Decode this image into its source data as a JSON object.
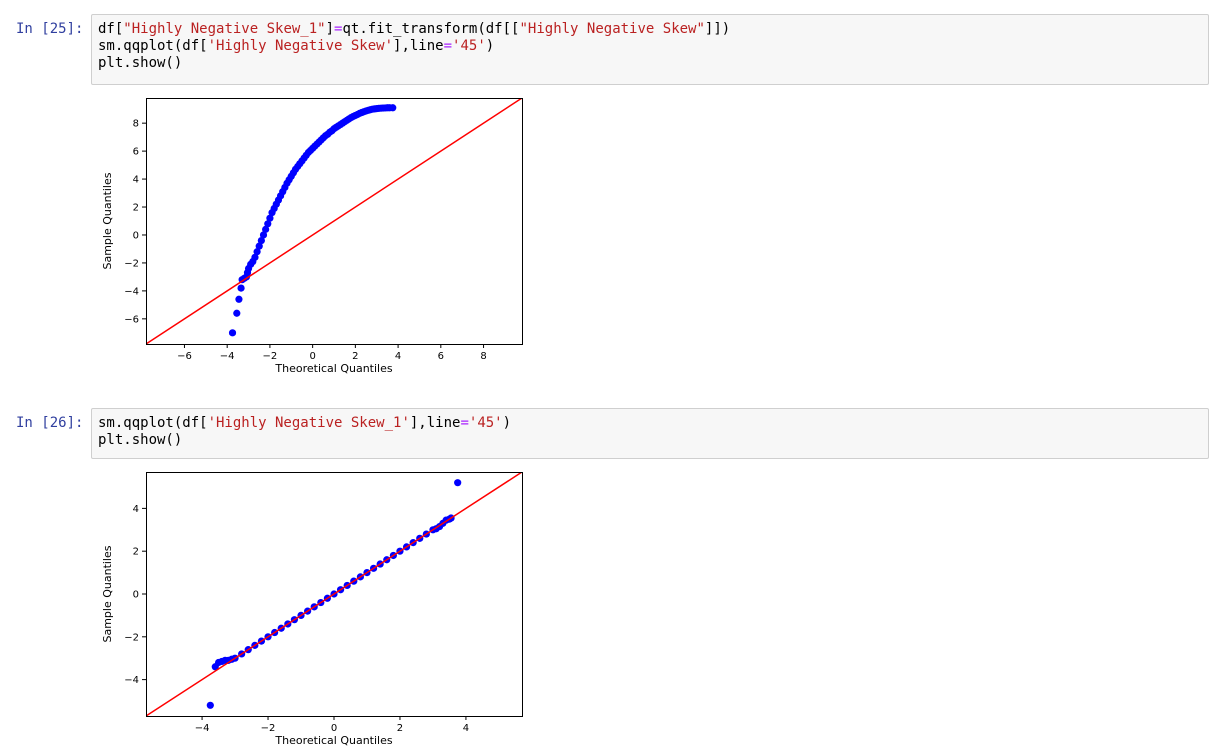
{
  "cells": [
    {
      "prompt": "In [25]:",
      "lines": [
        [
          {
            "t": "df[",
            "c": ""
          },
          {
            "t": "\"Highly Negative Skew_1\"",
            "c": "str"
          },
          {
            "t": "]",
            "c": ""
          },
          {
            "t": "=",
            "c": "op"
          },
          {
            "t": "qt.fit_transform(df[[",
            "c": ""
          },
          {
            "t": "\"Highly Negative Skew\"",
            "c": "str"
          },
          {
            "t": "]])",
            "c": ""
          }
        ],
        [
          {
            "t": "sm.qqplot(df[",
            "c": ""
          },
          {
            "t": "'Highly Negative Skew'",
            "c": "str"
          },
          {
            "t": "],line",
            "c": ""
          },
          {
            "t": "=",
            "c": "op"
          },
          {
            "t": "'45'",
            "c": "str"
          },
          {
            "t": ")",
            "c": ""
          }
        ],
        [
          {
            "t": "plt.show()",
            "c": ""
          }
        ]
      ]
    },
    {
      "prompt": "In [26]:",
      "lines": [
        [
          {
            "t": "sm.qqplot(df[",
            "c": ""
          },
          {
            "t": "'Highly Negative Skew_1'",
            "c": "str"
          },
          {
            "t": "],line",
            "c": ""
          },
          {
            "t": "=",
            "c": "op"
          },
          {
            "t": "'45'",
            "c": "str"
          },
          {
            "t": ")",
            "c": ""
          }
        ],
        [
          {
            "t": "plt.show()",
            "c": ""
          }
        ]
      ]
    }
  ],
  "chart_data": [
    {
      "type": "scatter",
      "title": "",
      "xlabel": "Theoretical Quantiles",
      "ylabel": "Sample Quantiles",
      "xlim": [
        -7.8,
        9.8
      ],
      "ylim": [
        -7.8,
        9.8
      ],
      "xticks": [
        -6,
        -4,
        -2,
        0,
        2,
        4,
        6,
        8
      ],
      "yticks": [
        -6,
        -4,
        -2,
        0,
        2,
        4,
        6,
        8
      ],
      "reference_line": "45",
      "point_color": "#0000ff",
      "line_color": "#ff0000",
      "points": [
        [
          -3.75,
          -7.0
        ],
        [
          -3.55,
          -5.6
        ],
        [
          -3.45,
          -4.6
        ],
        [
          -3.35,
          -3.8
        ],
        [
          -3.3,
          -3.2
        ],
        [
          -3.2,
          -3.1
        ],
        [
          -3.1,
          -3.0
        ],
        [
          -3.05,
          -2.7
        ],
        [
          -3.0,
          -2.4
        ],
        [
          -2.9,
          -2.1
        ],
        [
          -2.8,
          -1.9
        ],
        [
          -2.7,
          -1.6
        ],
        [
          -2.6,
          -1.2
        ],
        [
          -2.5,
          -0.8
        ],
        [
          -2.4,
          -0.4
        ],
        [
          -2.3,
          0.0
        ],
        [
          -2.2,
          0.4
        ],
        [
          -2.1,
          0.8
        ],
        [
          -2.0,
          1.2
        ],
        [
          -1.9,
          1.6
        ],
        [
          -1.8,
          1.9
        ],
        [
          -1.7,
          2.2
        ],
        [
          -1.6,
          2.5
        ],
        [
          -1.5,
          2.8
        ],
        [
          -1.4,
          3.1
        ],
        [
          -1.3,
          3.4
        ],
        [
          -1.2,
          3.7
        ],
        [
          -1.1,
          3.95
        ],
        [
          -1.0,
          4.2
        ],
        [
          -0.9,
          4.45
        ],
        [
          -0.8,
          4.7
        ],
        [
          -0.7,
          4.9
        ],
        [
          -0.6,
          5.1
        ],
        [
          -0.5,
          5.3
        ],
        [
          -0.4,
          5.5
        ],
        [
          -0.3,
          5.7
        ],
        [
          -0.2,
          5.9
        ],
        [
          -0.1,
          6.05
        ],
        [
          0.0,
          6.2
        ],
        [
          0.1,
          6.35
        ],
        [
          0.2,
          6.5
        ],
        [
          0.3,
          6.65
        ],
        [
          0.4,
          6.8
        ],
        [
          0.5,
          6.95
        ],
        [
          0.6,
          7.1
        ],
        [
          0.7,
          7.2
        ],
        [
          0.8,
          7.35
        ],
        [
          0.9,
          7.45
        ],
        [
          1.0,
          7.6
        ],
        [
          1.1,
          7.7
        ],
        [
          1.2,
          7.8
        ],
        [
          1.3,
          7.9
        ],
        [
          1.4,
          8.0
        ],
        [
          1.5,
          8.1
        ],
        [
          1.6,
          8.2
        ],
        [
          1.7,
          8.3
        ],
        [
          1.8,
          8.4
        ],
        [
          1.9,
          8.48
        ],
        [
          2.0,
          8.55
        ],
        [
          2.1,
          8.62
        ],
        [
          2.2,
          8.7
        ],
        [
          2.3,
          8.76
        ],
        [
          2.4,
          8.82
        ],
        [
          2.5,
          8.87
        ],
        [
          2.6,
          8.92
        ],
        [
          2.7,
          8.96
        ],
        [
          2.8,
          9.0
        ],
        [
          2.9,
          9.02
        ],
        [
          3.0,
          9.04
        ],
        [
          3.1,
          9.06
        ],
        [
          3.2,
          9.07
        ],
        [
          3.3,
          9.08
        ],
        [
          3.4,
          9.09
        ],
        [
          3.5,
          9.1
        ],
        [
          3.6,
          9.1
        ],
        [
          3.75,
          9.1
        ]
      ]
    },
    {
      "type": "scatter",
      "title": "",
      "xlabel": "Theoretical Quantiles",
      "ylabel": "Sample Quantiles",
      "xlim": [
        -5.7,
        5.7
      ],
      "ylim": [
        -5.7,
        5.7
      ],
      "xticks": [
        -4,
        -2,
        0,
        2,
        4
      ],
      "yticks": [
        -4,
        -2,
        0,
        2,
        4
      ],
      "reference_line": "45",
      "point_color": "#0000ff",
      "line_color": "#ff0000",
      "points": [
        [
          -3.75,
          -5.2
        ],
        [
          -3.6,
          -3.4
        ],
        [
          -3.5,
          -3.2
        ],
        [
          -3.4,
          -3.15
        ],
        [
          -3.3,
          -3.1
        ],
        [
          -3.2,
          -3.1
        ],
        [
          -3.1,
          -3.05
        ],
        [
          -3.0,
          -3.0
        ],
        [
          -2.8,
          -2.8
        ],
        [
          -2.6,
          -2.6
        ],
        [
          -2.4,
          -2.4
        ],
        [
          -2.2,
          -2.2
        ],
        [
          -2.0,
          -2.0
        ],
        [
          -1.8,
          -1.8
        ],
        [
          -1.6,
          -1.6
        ],
        [
          -1.4,
          -1.4
        ],
        [
          -1.2,
          -1.2
        ],
        [
          -1.0,
          -1.0
        ],
        [
          -0.8,
          -0.8
        ],
        [
          -0.6,
          -0.6
        ],
        [
          -0.4,
          -0.4
        ],
        [
          -0.2,
          -0.2
        ],
        [
          0.0,
          0.0
        ],
        [
          0.2,
          0.2
        ],
        [
          0.4,
          0.4
        ],
        [
          0.6,
          0.6
        ],
        [
          0.8,
          0.8
        ],
        [
          1.0,
          1.0
        ],
        [
          1.2,
          1.2
        ],
        [
          1.4,
          1.4
        ],
        [
          1.6,
          1.6
        ],
        [
          1.8,
          1.8
        ],
        [
          2.0,
          2.0
        ],
        [
          2.2,
          2.2
        ],
        [
          2.4,
          2.4
        ],
        [
          2.6,
          2.6
        ],
        [
          2.8,
          2.8
        ],
        [
          3.0,
          3.0
        ],
        [
          3.1,
          3.05
        ],
        [
          3.2,
          3.15
        ],
        [
          3.3,
          3.3
        ],
        [
          3.4,
          3.45
        ],
        [
          3.5,
          3.5
        ],
        [
          3.55,
          3.55
        ],
        [
          3.75,
          5.2
        ]
      ]
    }
  ]
}
